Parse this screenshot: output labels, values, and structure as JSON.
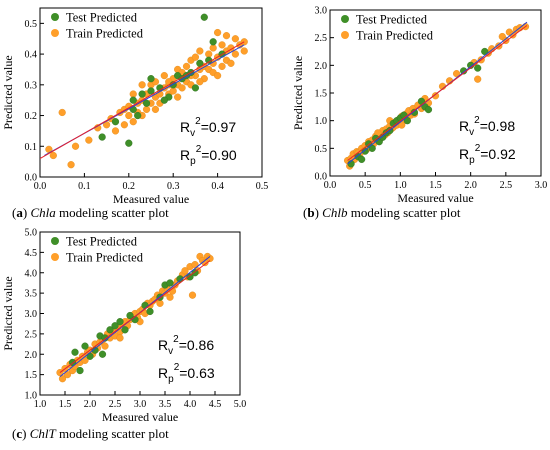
{
  "colors": {
    "test": "#3f8f28",
    "train": "#ff9f2a",
    "fit_red": "#e8202a",
    "fit_blue": "#2a3fd6"
  },
  "chart_data": [
    {
      "type": "scatter",
      "panel": "a",
      "caption": {
        "letter": "a",
        "species": "Chla",
        "rest": " modeling scatter plot"
      },
      "xlabel": "Measured value",
      "ylabel": "Predicted value",
      "xlim": [
        0.0,
        0.5
      ],
      "ylim": [
        0.0,
        0.55
      ],
      "xticks": [
        "0.0",
        "0.1",
        "0.2",
        "0.3",
        "0.4",
        "0.5"
      ],
      "yticks": [
        "0.0",
        "0.1",
        "0.2",
        "0.3",
        "0.4",
        "0.5"
      ],
      "legend": [
        "Test Predicted",
        "Train Predicted"
      ],
      "rv_label": "R",
      "rv_sub": "v",
      "rv_value": "=0.97",
      "rp_label": "R",
      "rp_sub": "p",
      "rp_value": "=0.90",
      "fit_red": [
        [
          0.0,
          0.06
        ],
        [
          0.46,
          0.44
        ]
      ],
      "fit_blue": [
        [
          0.01,
          0.07
        ],
        [
          0.46,
          0.43
        ]
      ],
      "test": [
        [
          0.2,
          0.11
        ],
        [
          0.17,
          0.18
        ],
        [
          0.21,
          0.22
        ],
        [
          0.21,
          0.25
        ],
        [
          0.23,
          0.27
        ],
        [
          0.24,
          0.24
        ],
        [
          0.25,
          0.28
        ],
        [
          0.27,
          0.29
        ],
        [
          0.29,
          0.26
        ],
        [
          0.3,
          0.3
        ],
        [
          0.31,
          0.33
        ],
        [
          0.32,
          0.32
        ],
        [
          0.33,
          0.33
        ],
        [
          0.34,
          0.34
        ],
        [
          0.36,
          0.37
        ],
        [
          0.37,
          0.52
        ],
        [
          0.38,
          0.38
        ],
        [
          0.41,
          0.4
        ],
        [
          0.25,
          0.32
        ],
        [
          0.28,
          0.25
        ],
        [
          0.35,
          0.29
        ],
        [
          0.22,
          0.2
        ],
        [
          0.14,
          0.13
        ],
        [
          0.39,
          0.44
        ]
      ],
      "train": [
        [
          0.02,
          0.09
        ],
        [
          0.03,
          0.07
        ],
        [
          0.05,
          0.21
        ],
        [
          0.07,
          0.04
        ],
        [
          0.08,
          0.1
        ],
        [
          0.11,
          0.12
        ],
        [
          0.13,
          0.16
        ],
        [
          0.15,
          0.17
        ],
        [
          0.16,
          0.19
        ],
        [
          0.17,
          0.15
        ],
        [
          0.18,
          0.21
        ],
        [
          0.19,
          0.17
        ],
        [
          0.19,
          0.22
        ],
        [
          0.2,
          0.23
        ],
        [
          0.21,
          0.18
        ],
        [
          0.21,
          0.27
        ],
        [
          0.22,
          0.24
        ],
        [
          0.22,
          0.21
        ],
        [
          0.23,
          0.25
        ],
        [
          0.23,
          0.3
        ],
        [
          0.24,
          0.22
        ],
        [
          0.24,
          0.27
        ],
        [
          0.25,
          0.24
        ],
        [
          0.25,
          0.3
        ],
        [
          0.26,
          0.26
        ],
        [
          0.26,
          0.31
        ],
        [
          0.27,
          0.27
        ],
        [
          0.27,
          0.24
        ],
        [
          0.28,
          0.29
        ],
        [
          0.28,
          0.33
        ],
        [
          0.29,
          0.3
        ],
        [
          0.29,
          0.27
        ],
        [
          0.3,
          0.32
        ],
        [
          0.3,
          0.28
        ],
        [
          0.31,
          0.3
        ],
        [
          0.31,
          0.35
        ],
        [
          0.32,
          0.29
        ],
        [
          0.32,
          0.34
        ],
        [
          0.33,
          0.36
        ],
        [
          0.33,
          0.31
        ],
        [
          0.34,
          0.38
        ],
        [
          0.34,
          0.3
        ],
        [
          0.35,
          0.33
        ],
        [
          0.35,
          0.39
        ],
        [
          0.36,
          0.35
        ],
        [
          0.36,
          0.41
        ],
        [
          0.37,
          0.36
        ],
        [
          0.37,
          0.32
        ],
        [
          0.38,
          0.4
        ],
        [
          0.38,
          0.35
        ],
        [
          0.39,
          0.37
        ],
        [
          0.39,
          0.42
        ],
        [
          0.4,
          0.39
        ],
        [
          0.4,
          0.47
        ],
        [
          0.41,
          0.36
        ],
        [
          0.41,
          0.43
        ],
        [
          0.42,
          0.41
        ],
        [
          0.42,
          0.38
        ],
        [
          0.43,
          0.42
        ],
        [
          0.43,
          0.37
        ],
        [
          0.44,
          0.4
        ],
        [
          0.44,
          0.45
        ],
        [
          0.45,
          0.43
        ],
        [
          0.46,
          0.41
        ],
        [
          0.46,
          0.44
        ],
        [
          0.2,
          0.2
        ],
        [
          0.23,
          0.2
        ],
        [
          0.26,
          0.22
        ],
        [
          0.29,
          0.31
        ],
        [
          0.31,
          0.26
        ],
        [
          0.34,
          0.33
        ],
        [
          0.36,
          0.31
        ],
        [
          0.39,
          0.34
        ],
        [
          0.4,
          0.33
        ],
        [
          0.42,
          0.46
        ]
      ]
    },
    {
      "type": "scatter",
      "panel": "b",
      "caption": {
        "letter": "b",
        "species": "Chlb",
        "rest": " modeling scatter plot"
      },
      "xlabel": "Measured value",
      "ylabel": "Predicted value",
      "xlim": [
        0.0,
        3.0
      ],
      "ylim": [
        0.0,
        3.0
      ],
      "xticks": [
        "0.0",
        "0.5",
        "1.0",
        "1.5",
        "2.0",
        "2.5",
        "3.0"
      ],
      "yticks": [
        "0.0",
        "0.5",
        "1.0",
        "1.5",
        "2.0",
        "2.5",
        "3.0"
      ],
      "legend": [
        "Test Predicted",
        "Train Predicted"
      ],
      "rv_label": "R",
      "rv_sub": "v",
      "rv_value": "=0.98",
      "rp_label": "R",
      "rp_sub": "p",
      "rp_value": "=0.92",
      "fit_red": [
        [
          0.25,
          0.28
        ],
        [
          2.8,
          2.72
        ]
      ],
      "fit_blue": [
        [
          0.25,
          0.22
        ],
        [
          2.8,
          2.78
        ]
      ],
      "test": [
        [
          0.3,
          0.22
        ],
        [
          0.4,
          0.35
        ],
        [
          0.5,
          0.45
        ],
        [
          0.55,
          0.58
        ],
        [
          0.65,
          0.68
        ],
        [
          0.7,
          0.62
        ],
        [
          0.75,
          0.7
        ],
        [
          0.8,
          0.78
        ],
        [
          0.85,
          0.82
        ],
        [
          0.9,
          0.95
        ],
        [
          0.95,
          1.0
        ],
        [
          1.0,
          1.05
        ],
        [
          1.05,
          1.1
        ],
        [
          1.1,
          1.0
        ],
        [
          1.2,
          1.15
        ],
        [
          1.3,
          1.35
        ],
        [
          1.35,
          1.25
        ],
        [
          1.4,
          1.2
        ],
        [
          1.9,
          1.9
        ],
        [
          2.0,
          2.0
        ],
        [
          2.1,
          1.95
        ],
        [
          2.2,
          2.25
        ],
        [
          0.45,
          0.3
        ],
        [
          0.6,
          0.5
        ]
      ],
      "train": [
        [
          0.25,
          0.28
        ],
        [
          0.28,
          0.18
        ],
        [
          0.3,
          0.32
        ],
        [
          0.33,
          0.4
        ],
        [
          0.35,
          0.3
        ],
        [
          0.38,
          0.44
        ],
        [
          0.4,
          0.42
        ],
        [
          0.42,
          0.36
        ],
        [
          0.45,
          0.5
        ],
        [
          0.48,
          0.45
        ],
        [
          0.5,
          0.55
        ],
        [
          0.52,
          0.48
        ],
        [
          0.55,
          0.62
        ],
        [
          0.58,
          0.55
        ],
        [
          0.6,
          0.65
        ],
        [
          0.62,
          0.58
        ],
        [
          0.65,
          0.72
        ],
        [
          0.68,
          0.64
        ],
        [
          0.7,
          0.75
        ],
        [
          0.72,
          0.68
        ],
        [
          0.75,
          0.82
        ],
        [
          0.78,
          0.74
        ],
        [
          0.8,
          0.85
        ],
        [
          0.82,
          0.78
        ],
        [
          0.85,
          0.9
        ],
        [
          0.88,
          0.86
        ],
        [
          0.9,
          0.88
        ],
        [
          0.92,
          0.97
        ],
        [
          0.95,
          0.92
        ],
        [
          0.98,
          1.02
        ],
        [
          1.0,
          0.98
        ],
        [
          1.02,
          1.08
        ],
        [
          1.05,
          1.0
        ],
        [
          1.08,
          1.12
        ],
        [
          1.1,
          1.06
        ],
        [
          1.12,
          1.18
        ],
        [
          1.15,
          1.1
        ],
        [
          1.18,
          1.22
        ],
        [
          1.2,
          1.12
        ],
        [
          1.25,
          1.28
        ],
        [
          1.3,
          1.22
        ],
        [
          1.35,
          1.4
        ],
        [
          1.4,
          1.32
        ],
        [
          1.5,
          1.45
        ],
        [
          1.6,
          1.62
        ],
        [
          1.7,
          1.72
        ],
        [
          1.8,
          1.85
        ],
        [
          2.05,
          2.05
        ],
        [
          2.1,
          1.75
        ],
        [
          2.15,
          2.1
        ],
        [
          2.25,
          2.22
        ],
        [
          2.3,
          2.3
        ],
        [
          2.4,
          2.35
        ],
        [
          2.45,
          2.52
        ],
        [
          2.5,
          2.45
        ],
        [
          2.55,
          2.6
        ],
        [
          2.6,
          2.55
        ],
        [
          2.65,
          2.65
        ],
        [
          2.7,
          2.68
        ],
        [
          2.78,
          2.7
        ],
        [
          0.85,
          1.0
        ],
        [
          1.02,
          0.92
        ],
        [
          0.68,
          0.78
        ]
      ]
    },
    {
      "type": "scatter",
      "panel": "c",
      "caption": {
        "letter": "c",
        "species": "ChlT",
        "rest": " modeling scatter plot"
      },
      "xlabel": "Measured value",
      "ylabel": "Predicted value",
      "xlim": [
        1.0,
        5.0
      ],
      "ylim": [
        1.0,
        5.0
      ],
      "xticks": [
        "1.0",
        "1.5",
        "2.0",
        "2.5",
        "3.0",
        "3.5",
        "4.0",
        "4.5",
        "5.0"
      ],
      "yticks": [
        "1.0",
        "1.5",
        "2.0",
        "2.5",
        "3.0",
        "3.5",
        "4.0",
        "4.5",
        "5.0"
      ],
      "legend": [
        "Test Predicted",
        "Train Predicted"
      ],
      "rv_label": "R",
      "rv_sub": "v",
      "rv_value": "=0.86",
      "rp_label": "R",
      "rp_sub": "p",
      "rp_value": "=0.63",
      "fit_red": [
        [
          1.4,
          1.55
        ],
        [
          4.4,
          4.3
        ]
      ],
      "fit_blue": [
        [
          1.4,
          1.45
        ],
        [
          4.4,
          4.4
        ]
      ],
      "test": [
        [
          1.65,
          1.8
        ],
        [
          1.7,
          2.05
        ],
        [
          1.9,
          2.2
        ],
        [
          2.0,
          1.95
        ],
        [
          2.1,
          2.1
        ],
        [
          2.2,
          2.45
        ],
        [
          2.3,
          2.4
        ],
        [
          2.4,
          2.6
        ],
        [
          2.5,
          2.7
        ],
        [
          2.6,
          2.8
        ],
        [
          2.7,
          2.6
        ],
        [
          2.8,
          2.95
        ],
        [
          2.9,
          2.85
        ],
        [
          3.1,
          3.2
        ],
        [
          3.2,
          3.05
        ],
        [
          3.4,
          3.4
        ],
        [
          3.5,
          3.7
        ],
        [
          3.6,
          3.75
        ],
        [
          3.8,
          3.85
        ],
        [
          4.0,
          3.9
        ],
        [
          4.1,
          4.0
        ],
        [
          2.25,
          2.0
        ],
        [
          1.8,
          1.6
        ]
      ],
      "train": [
        [
          1.4,
          1.55
        ],
        [
          1.45,
          1.4
        ],
        [
          1.5,
          1.65
        ],
        [
          1.55,
          1.5
        ],
        [
          1.6,
          1.75
        ],
        [
          1.65,
          1.6
        ],
        [
          1.7,
          1.7
        ],
        [
          1.75,
          1.85
        ],
        [
          1.8,
          1.8
        ],
        [
          1.85,
          1.95
        ],
        [
          1.9,
          1.85
        ],
        [
          1.95,
          2.05
        ],
        [
          2.0,
          2.1
        ],
        [
          2.05,
          2.0
        ],
        [
          2.1,
          2.25
        ],
        [
          2.15,
          2.15
        ],
        [
          2.2,
          2.3
        ],
        [
          2.25,
          2.35
        ],
        [
          2.3,
          2.2
        ],
        [
          2.35,
          2.5
        ],
        [
          2.4,
          2.4
        ],
        [
          2.45,
          2.55
        ],
        [
          2.5,
          2.45
        ],
        [
          2.55,
          2.65
        ],
        [
          2.6,
          2.55
        ],
        [
          2.65,
          2.75
        ],
        [
          2.7,
          2.8
        ],
        [
          2.75,
          2.7
        ],
        [
          2.8,
          2.85
        ],
        [
          2.85,
          2.95
        ],
        [
          2.9,
          3.0
        ],
        [
          2.95,
          2.9
        ],
        [
          3.0,
          3.05
        ],
        [
          3.05,
          3.1
        ],
        [
          3.1,
          3.0
        ],
        [
          3.15,
          3.25
        ],
        [
          3.2,
          3.2
        ],
        [
          3.25,
          3.3
        ],
        [
          3.3,
          3.35
        ],
        [
          3.35,
          3.45
        ],
        [
          3.4,
          3.25
        ],
        [
          3.45,
          3.55
        ],
        [
          3.5,
          3.5
        ],
        [
          3.55,
          3.6
        ],
        [
          3.65,
          3.55
        ],
        [
          3.7,
          3.7
        ],
        [
          3.75,
          3.8
        ],
        [
          3.85,
          3.95
        ],
        [
          3.9,
          4.05
        ],
        [
          3.95,
          3.9
        ],
        [
          4.0,
          4.15
        ],
        [
          4.05,
          3.45
        ],
        [
          4.1,
          4.2
        ],
        [
          4.15,
          4.05
        ],
        [
          4.2,
          4.4
        ],
        [
          4.25,
          4.3
        ],
        [
          4.3,
          4.25
        ],
        [
          4.35,
          4.4
        ],
        [
          4.4,
          4.35
        ],
        [
          2.6,
          2.4
        ],
        [
          3.0,
          2.8
        ],
        [
          3.6,
          3.4
        ]
      ]
    }
  ]
}
